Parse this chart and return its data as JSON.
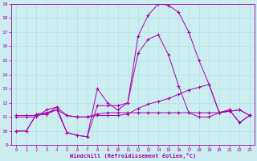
{
  "xlabel": "Windchill (Refroidissement éolien,°C)",
  "bg_color": "#cceef0",
  "line_color": "#aa00aa",
  "xlim": [
    -0.5,
    23.5
  ],
  "ylim": [
    9,
    19
  ],
  "xticks": [
    0,
    1,
    2,
    3,
    4,
    5,
    6,
    7,
    8,
    9,
    10,
    11,
    12,
    13,
    14,
    15,
    16,
    17,
    18,
    19,
    20,
    21,
    22,
    23
  ],
  "yticks": [
    9,
    10,
    11,
    12,
    13,
    14,
    15,
    16,
    17,
    18,
    19
  ],
  "line1_x": [
    0,
    1,
    2,
    3,
    4,
    5,
    6,
    7,
    8,
    9,
    10,
    11,
    12,
    13,
    14,
    15,
    16,
    17,
    18,
    19,
    20,
    21,
    22,
    23
  ],
  "line1_y": [
    10.0,
    10.0,
    11.2,
    11.2,
    11.7,
    9.9,
    9.7,
    9.6,
    13.0,
    12.0,
    11.5,
    12.0,
    16.7,
    18.2,
    19.0,
    18.9,
    18.4,
    17.0,
    15.0,
    13.3,
    11.3,
    11.5,
    10.6,
    11.1
  ],
  "line2_x": [
    0,
    1,
    2,
    3,
    4,
    5,
    6,
    7,
    8,
    9,
    10,
    11,
    12,
    13,
    14,
    15,
    16,
    17,
    18,
    19,
    20,
    21,
    22,
    23
  ],
  "line2_y": [
    11.1,
    11.1,
    11.1,
    11.2,
    11.5,
    11.1,
    11.0,
    11.0,
    11.1,
    11.1,
    11.1,
    11.2,
    11.6,
    11.9,
    12.1,
    12.3,
    12.6,
    12.9,
    13.1,
    13.3,
    11.3,
    11.4,
    11.5,
    11.1
  ],
  "line3_x": [
    0,
    1,
    2,
    3,
    4,
    5,
    6,
    7,
    8,
    9,
    10,
    11,
    12,
    13,
    14,
    15,
    16,
    17,
    18,
    19,
    20,
    21,
    22,
    23
  ],
  "line3_y": [
    11.0,
    11.0,
    11.0,
    11.5,
    11.7,
    11.1,
    11.0,
    11.0,
    11.2,
    11.3,
    11.3,
    11.3,
    11.3,
    11.3,
    11.3,
    11.3,
    11.3,
    11.3,
    11.3,
    11.3,
    11.3,
    11.4,
    11.5,
    11.1
  ],
  "line4_x": [
    0,
    1,
    2,
    3,
    4,
    5,
    6,
    7,
    8,
    9,
    10,
    11,
    12,
    13,
    14,
    15,
    16,
    17,
    18,
    19,
    20,
    21,
    22,
    23
  ],
  "line4_y": [
    10.0,
    10.0,
    11.2,
    11.3,
    11.5,
    9.9,
    9.7,
    9.6,
    11.8,
    11.8,
    11.8,
    12.0,
    15.5,
    16.5,
    16.8,
    15.4,
    13.2,
    11.3,
    11.0,
    11.0,
    11.3,
    11.5,
    10.6,
    11.1
  ]
}
